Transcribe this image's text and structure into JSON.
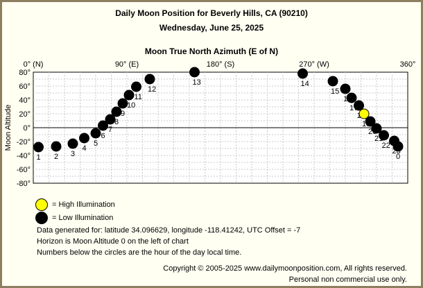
{
  "title_line1": "Daily Moon Position for Beverly Hills, CA (90210)",
  "title_line2": "Wednesday, June 25, 2025",
  "legend": {
    "high": "= High Illumination",
    "low": "= Low Illumination"
  },
  "info": {
    "line1": "Data generated for: latitude 34.096629, longitude -118.41242, UTC Offset = -7",
    "line2": "Horizon is Moon Altitude 0 on the left of chart",
    "line3": "Numbers below the circles are the hour of the day local time."
  },
  "copyright": {
    "line1": "Copyright © 2005-2025 www.dailymoonposition.com, All rights reserved.",
    "line2": "Personal non commercial use only."
  },
  "chart_data": {
    "type": "scatter",
    "xlabel": "Moon True North Azimuth (E of N)",
    "ylabel": "Moon Altitude",
    "xlim": [
      0,
      360
    ],
    "ylim": [
      -80,
      80
    ],
    "x_tick_labels": [
      {
        "value": 0,
        "label": "0° (N)"
      },
      {
        "value": 90,
        "label": "90° (E)"
      },
      {
        "value": 180,
        "label": "180° (S)"
      },
      {
        "value": 270,
        "label": "270° (W)"
      },
      {
        "value": 360,
        "label": "360°"
      }
    ],
    "y_tick_labels": [
      {
        "value": 80,
        "label": "80°"
      },
      {
        "value": 60,
        "label": "60°"
      },
      {
        "value": 40,
        "label": "40°"
      },
      {
        "value": 20,
        "label": "20°"
      },
      {
        "value": 0,
        "label": "0°"
      },
      {
        "value": -20,
        "label": "-20°"
      },
      {
        "value": -40,
        "label": "-40°"
      },
      {
        "value": -60,
        "label": "-60°"
      },
      {
        "value": -80,
        "label": "-80°"
      }
    ],
    "grid": true,
    "horizon_altitude": 0,
    "colors": {
      "high_illumination": "#ffff00",
      "low_illumination": "#000000",
      "grid": "#c8c8c8",
      "horizon": "#000000"
    },
    "points": [
      {
        "hour": "1",
        "azimuth": 5,
        "altitude": -28,
        "illumination": "low"
      },
      {
        "hour": "2",
        "azimuth": 22,
        "altitude": -27,
        "illumination": "low"
      },
      {
        "hour": "3",
        "azimuth": 38,
        "altitude": -23,
        "illumination": "low"
      },
      {
        "hour": "4",
        "azimuth": 49,
        "altitude": -15,
        "illumination": "low"
      },
      {
        "hour": "5",
        "azimuth": 60,
        "altitude": -8,
        "illumination": "low"
      },
      {
        "hour": "6",
        "azimuth": 67,
        "altitude": 3,
        "illumination": "low"
      },
      {
        "hour": "7",
        "azimuth": 74,
        "altitude": 12,
        "illumination": "low"
      },
      {
        "hour": "8",
        "azimuth": 80,
        "altitude": 23,
        "illumination": "low"
      },
      {
        "hour": "9",
        "azimuth": 86,
        "altitude": 35,
        "illumination": "low"
      },
      {
        "hour": "10",
        "azimuth": 92,
        "altitude": 47,
        "illumination": "low"
      },
      {
        "hour": "11",
        "azimuth": 99,
        "altitude": 59,
        "illumination": "low"
      },
      {
        "hour": "12",
        "azimuth": 112,
        "altitude": 70,
        "illumination": "low"
      },
      {
        "hour": "13",
        "azimuth": 155,
        "altitude": 80,
        "illumination": "low"
      },
      {
        "hour": "14",
        "azimuth": 259,
        "altitude": 78,
        "illumination": "low"
      },
      {
        "hour": "15",
        "azimuth": 288,
        "altitude": 67,
        "illumination": "low"
      },
      {
        "hour": "16",
        "azimuth": 300,
        "altitude": 56,
        "illumination": "low"
      },
      {
        "hour": "17",
        "azimuth": 306,
        "altitude": 43,
        "illumination": "low"
      },
      {
        "hour": "18",
        "azimuth": 313,
        "altitude": 32,
        "illumination": "low"
      },
      {
        "hour": "19",
        "azimuth": 318,
        "altitude": 20,
        "illumination": "high"
      },
      {
        "hour": "20",
        "azimuth": 324,
        "altitude": 9,
        "illumination": "low"
      },
      {
        "hour": "21",
        "azimuth": 330,
        "altitude": -1,
        "illumination": "low"
      },
      {
        "hour": "22",
        "azimuth": 337,
        "altitude": -11,
        "illumination": "low"
      },
      {
        "hour": "23",
        "azimuth": 347,
        "altitude": -19,
        "illumination": "low"
      },
      {
        "hour": "0",
        "azimuth": 376,
        "altitude": -27,
        "illumination": "low"
      }
    ]
  }
}
